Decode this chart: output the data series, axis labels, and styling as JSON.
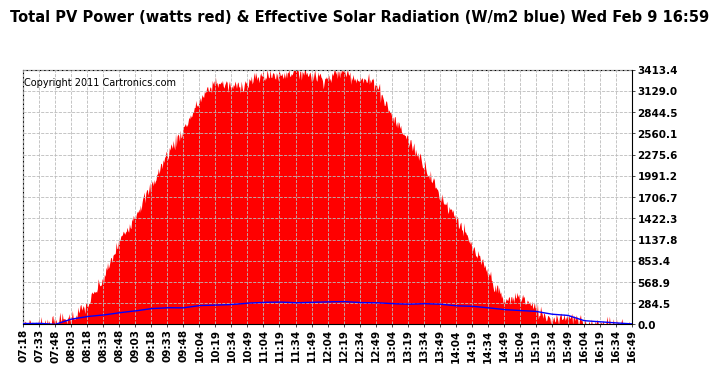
{
  "title": "Total PV Power (watts red) & Effective Solar Radiation (W/m2 blue) Wed Feb 9 16:59",
  "copyright_text": "Copyright 2011 Cartronics.com",
  "y_max": 3413.4,
  "y_ticks": [
    0.0,
    284.5,
    568.9,
    853.4,
    1137.8,
    1422.3,
    1706.7,
    1991.2,
    2275.6,
    2560.1,
    2844.5,
    3129.0,
    3413.4
  ],
  "y_tick_labels": [
    "0.0",
    "284.5",
    "568.9",
    "853.4",
    "1137.8",
    "1422.3",
    "1706.7",
    "1991.2",
    "2275.6",
    "2560.1",
    "2844.5",
    "3129.0",
    "3413.4"
  ],
  "x_tick_labels": [
    "07:18",
    "07:33",
    "07:48",
    "08:03",
    "08:18",
    "08:33",
    "08:48",
    "09:03",
    "09:18",
    "09:33",
    "09:48",
    "10:04",
    "10:19",
    "10:34",
    "10:49",
    "11:04",
    "11:19",
    "11:34",
    "11:49",
    "12:04",
    "12:19",
    "12:34",
    "12:49",
    "13:04",
    "13:19",
    "13:34",
    "13:49",
    "14:04",
    "14:19",
    "14:34",
    "14:49",
    "15:04",
    "15:19",
    "15:34",
    "15:49",
    "16:04",
    "16:19",
    "16:34",
    "16:49"
  ],
  "pv_color": "#FF0000",
  "solar_color": "#0000FF",
  "background_color": "#FFFFFF",
  "grid_color": "#BBBBBB",
  "title_fontsize": 10.5,
  "copyright_fontsize": 7,
  "tick_fontsize": 7.5,
  "solar_peak": 300.0,
  "pv_peak": 3413.4
}
